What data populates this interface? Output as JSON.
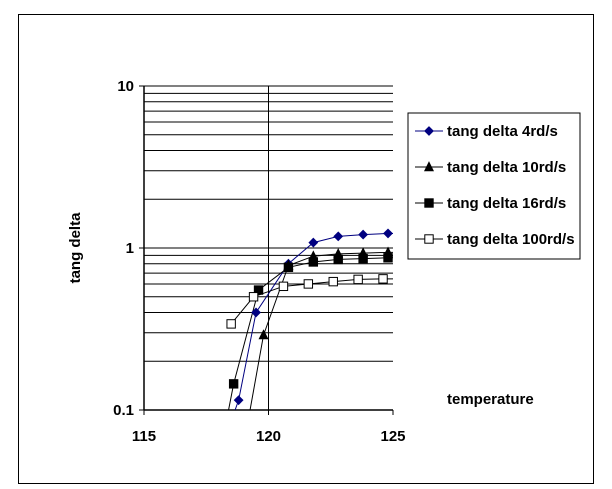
{
  "chart_data": {
    "type": "line",
    "title": "",
    "xlabel": "temperature",
    "ylabel": "tang delta",
    "xlim": [
      115,
      125
    ],
    "ylim": [
      0.1,
      10
    ],
    "yscale": "log",
    "xticks": [
      "115",
      "120",
      "125"
    ],
    "yticks": [
      "0.1",
      "1",
      "10"
    ],
    "grid": true,
    "legend": "right",
    "series": [
      {
        "name": "tang delta 4rd/s",
        "marker": "diamond-filled",
        "color": "#000080",
        "points": [
          [
            118.3,
            0.07
          ],
          [
            118.8,
            0.115
          ],
          [
            119.5,
            0.4
          ],
          [
            120.8,
            0.8
          ],
          [
            121.8,
            1.08
          ],
          [
            122.8,
            1.18
          ],
          [
            123.8,
            1.21
          ],
          [
            124.8,
            1.23
          ],
          [
            125.5,
            1.23
          ]
        ]
      },
      {
        "name": "tang delta 10rd/s",
        "marker": "triangle-filled",
        "color": "#000000",
        "points": [
          [
            119.0,
            0.06
          ],
          [
            119.8,
            0.29
          ],
          [
            120.8,
            0.78
          ],
          [
            121.8,
            0.89
          ],
          [
            122.8,
            0.92
          ],
          [
            123.8,
            0.93
          ],
          [
            124.8,
            0.94
          ],
          [
            125.5,
            0.94
          ]
        ]
      },
      {
        "name": "tang delta 16rd/s",
        "marker": "square-filled",
        "color": "#000000",
        "points": [
          [
            118.2,
            0.07
          ],
          [
            118.6,
            0.145
          ],
          [
            119.6,
            0.55
          ],
          [
            120.8,
            0.76
          ],
          [
            121.8,
            0.82
          ],
          [
            122.8,
            0.85
          ],
          [
            123.8,
            0.86
          ],
          [
            124.8,
            0.87
          ],
          [
            125.5,
            0.87
          ]
        ]
      },
      {
        "name": "tang delta 100rd/s",
        "marker": "square-open",
        "color": "#000000",
        "points": [
          [
            118.5,
            0.34
          ],
          [
            119.4,
            0.5
          ],
          [
            120.6,
            0.58
          ],
          [
            121.6,
            0.6
          ],
          [
            122.6,
            0.62
          ],
          [
            123.6,
            0.64
          ],
          [
            124.6,
            0.645
          ],
          [
            125.5,
            0.645
          ]
        ]
      }
    ]
  }
}
